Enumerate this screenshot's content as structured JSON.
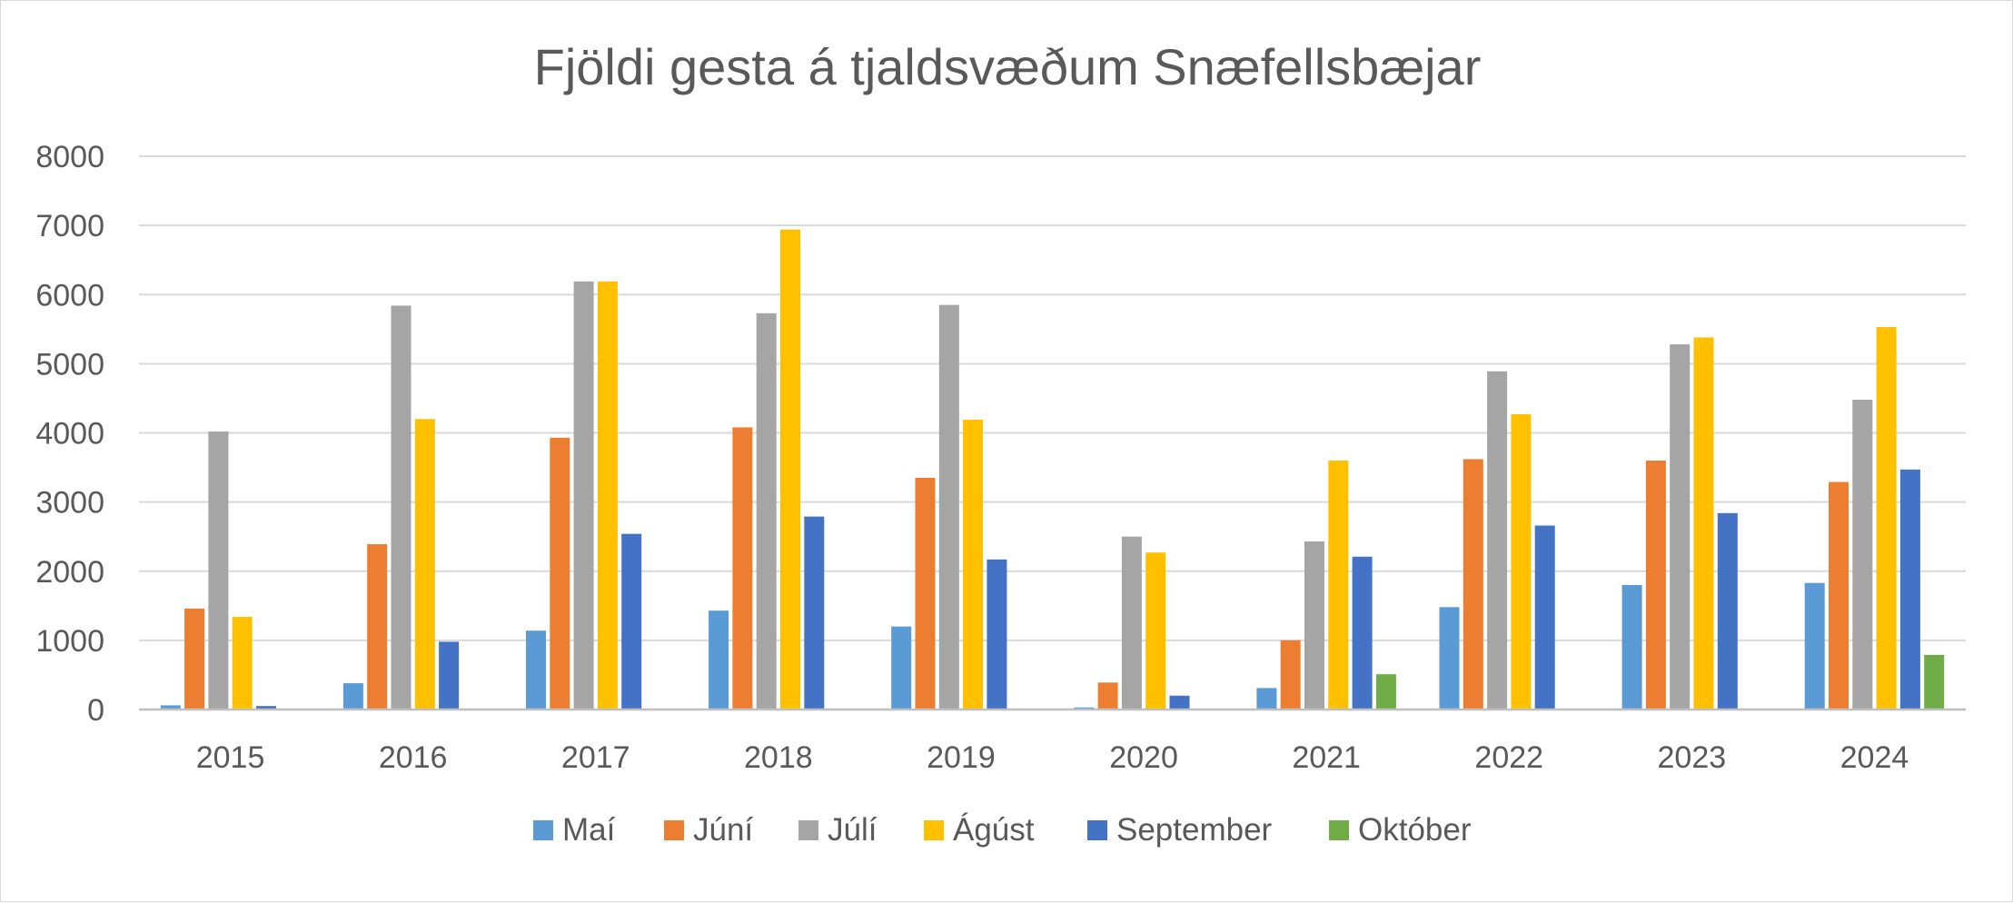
{
  "chart_data": {
    "type": "bar",
    "title": "Fjöldi gesta á tjaldsvæðum Snæfellsbæjar",
    "xlabel": "",
    "ylabel": "",
    "categories": [
      "2015",
      "2016",
      "2017",
      "2018",
      "2019",
      "2020",
      "2021",
      "2022",
      "2023",
      "2024"
    ],
    "ylim": [
      0,
      8000
    ],
    "yticks": [
      "0",
      "1000",
      "2000",
      "3000",
      "4000",
      "5000",
      "6000",
      "7000",
      "8000"
    ],
    "grid": true,
    "legend_position": "bottom",
    "series": [
      {
        "name": "Maí",
        "color": "#5b9bd5",
        "values": [
          60,
          380,
          1140,
          1430,
          1200,
          30,
          310,
          1480,
          1800,
          1830
        ]
      },
      {
        "name": "Júní",
        "color": "#ed7d31",
        "values": [
          1460,
          2390,
          3930,
          4080,
          3350,
          390,
          1000,
          3620,
          3600,
          3290
        ]
      },
      {
        "name": "Júlí",
        "color": "#a5a5a5",
        "values": [
          4020,
          5840,
          6190,
          5730,
          5850,
          2500,
          2430,
          4890,
          5280,
          4480
        ]
      },
      {
        "name": "Ágúst",
        "color": "#ffc000",
        "values": [
          1340,
          4200,
          6190,
          6940,
          4190,
          2270,
          3600,
          4270,
          5380,
          5530
        ]
      },
      {
        "name": "September",
        "color": "#4472c4",
        "values": [
          50,
          980,
          2540,
          2790,
          2170,
          200,
          2210,
          2660,
          2840,
          3470
        ]
      },
      {
        "name": "Október",
        "color": "#70ad47",
        "values": [
          null,
          null,
          null,
          null,
          null,
          null,
          510,
          null,
          null,
          790
        ]
      }
    ]
  }
}
